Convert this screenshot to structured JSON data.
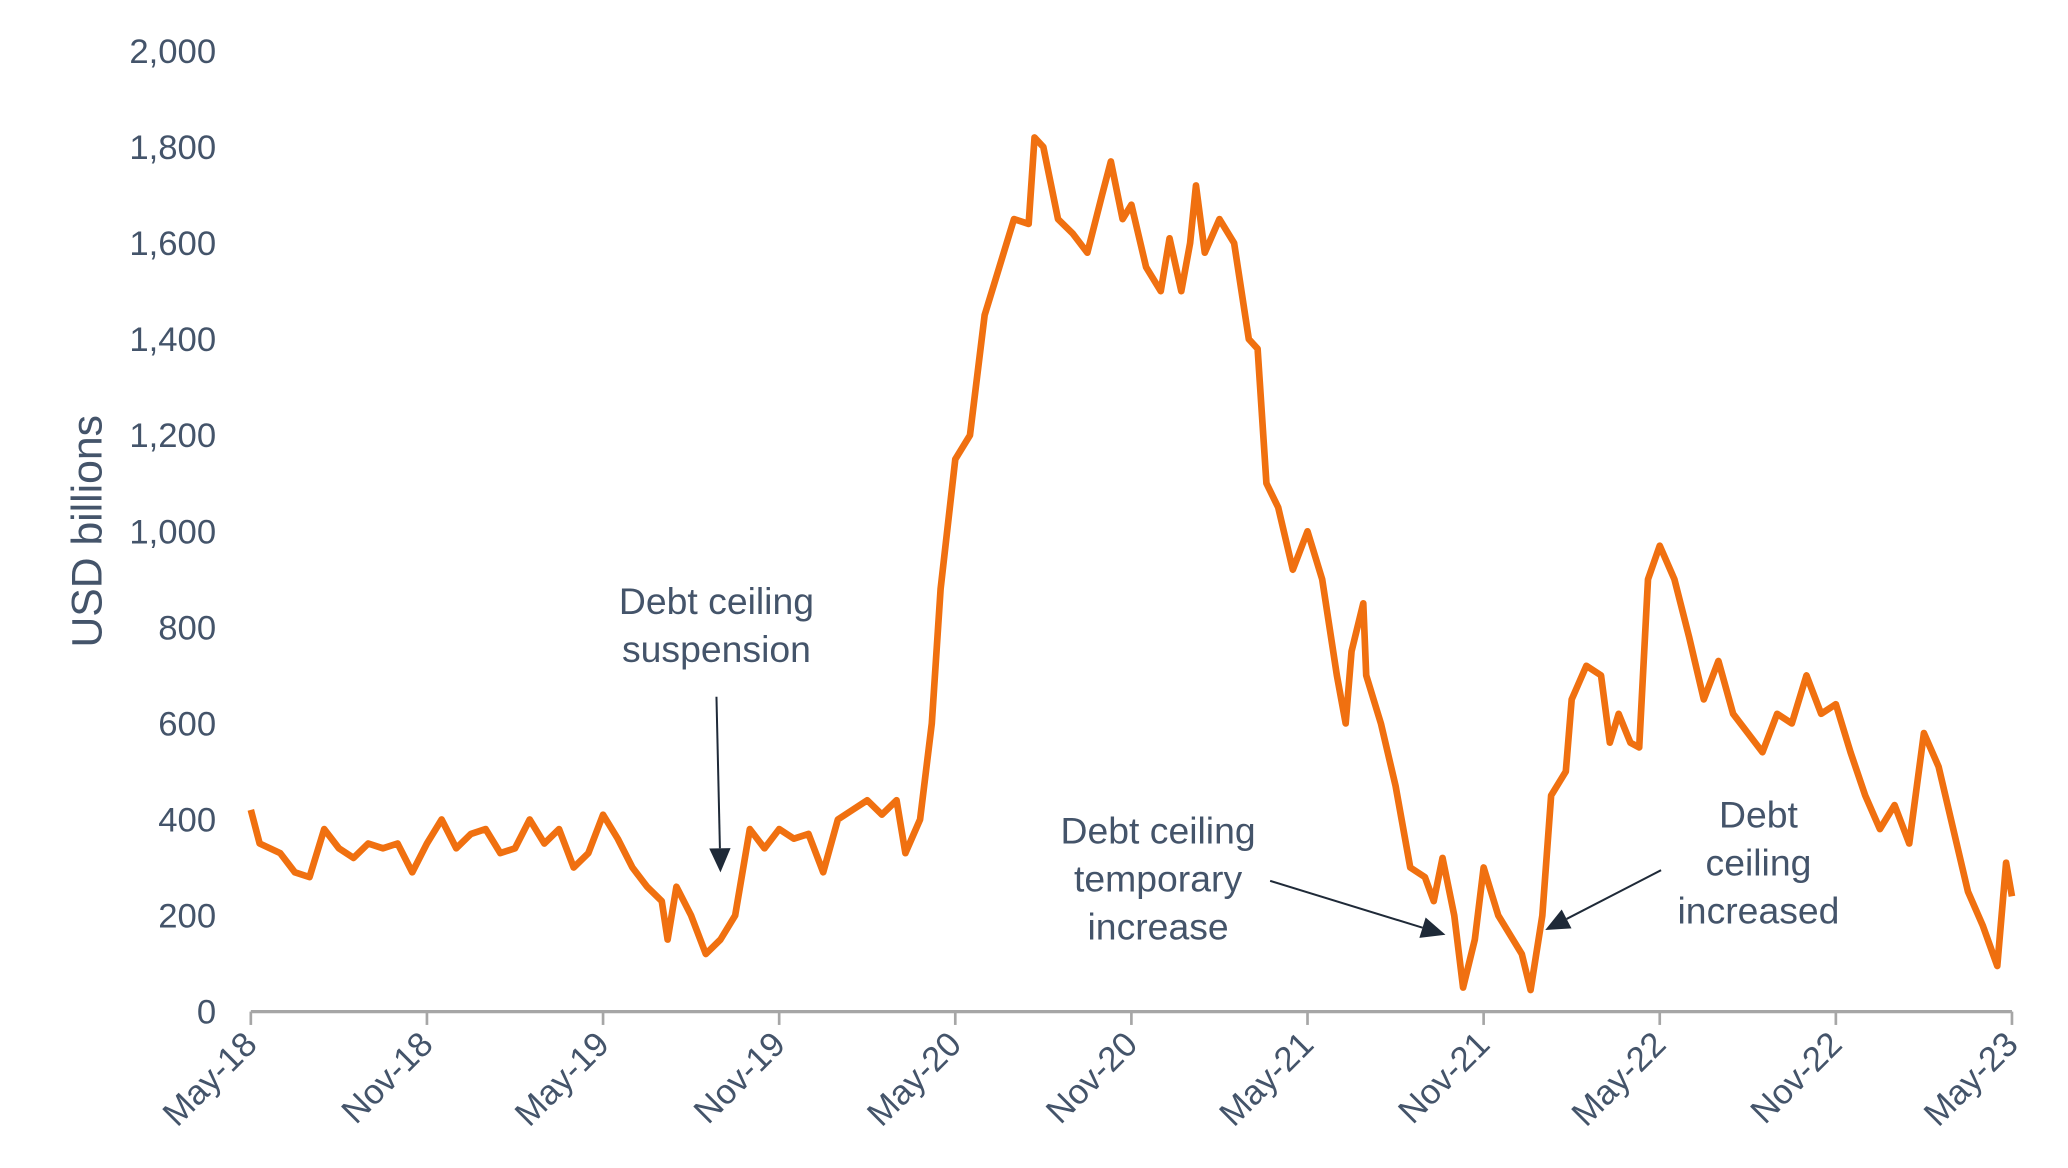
{
  "chart_data": {
    "type": "line",
    "title": "",
    "xlabel": "",
    "ylabel": "USD billions",
    "ylim": [
      0,
      2000
    ],
    "yticks": [
      "0",
      "200",
      "400",
      "600",
      "800",
      "1,000",
      "1,200",
      "1,400",
      "1,600",
      "1,800",
      "2,000"
    ],
    "ytick_values": [
      0,
      200,
      400,
      600,
      800,
      1000,
      1200,
      1400,
      1600,
      1800,
      2000
    ],
    "xticks": [
      "May-18",
      "Nov-18",
      "May-19",
      "Nov-19",
      "May-20",
      "Nov-20",
      "May-21",
      "Nov-21",
      "May-22",
      "Nov-22",
      "May-23"
    ],
    "x_unit": "months since May-18",
    "xlim": [
      0,
      60
    ],
    "grid": false,
    "series": [
      {
        "name": "USD billions",
        "color": "#f07010",
        "x": [
          0,
          0.3,
          1,
          1.5,
          2,
          2.5,
          3,
          3.5,
          4,
          4.5,
          5,
          5.5,
          6,
          6.5,
          7,
          7.5,
          8,
          8.5,
          9,
          9.5,
          10,
          10.5,
          11,
          11.5,
          12,
          12.5,
          13,
          13.5,
          14,
          14.2,
          14.5,
          15,
          15.5,
          16,
          16.5,
          17,
          17.5,
          18,
          18.5,
          19,
          19.5,
          20,
          20.5,
          21,
          21.5,
          22,
          22.3,
          22.8,
          23.2,
          23.5,
          24,
          24.5,
          25,
          25.5,
          26,
          26.5,
          26.7,
          27,
          27.5,
          28,
          28.5,
          29,
          29.3,
          29.7,
          30,
          30.5,
          31,
          31.3,
          31.7,
          32,
          32.2,
          32.5,
          33,
          33.5,
          34,
          34.3,
          34.6,
          35,
          35.5,
          36,
          36.5,
          37,
          37.3,
          37.5,
          37.9,
          38,
          38.5,
          39,
          39.5,
          40,
          40.3,
          40.6,
          41,
          41.3,
          41.7,
          42,
          42.5,
          43,
          43.3,
          43.6,
          44,
          44.3,
          44.8,
          45,
          45.5,
          46,
          46.3,
          46.6,
          47,
          47.3,
          47.6,
          48,
          48.5,
          49,
          49.5,
          50,
          50.5,
          51,
          51.5,
          52,
          52.5,
          53,
          53.5,
          54,
          54.5,
          55,
          55.5,
          56,
          56.5,
          57,
          57.5,
          58,
          58.5,
          59,
          59.5,
          59.8,
          60
        ],
        "values": [
          420,
          350,
          330,
          290,
          280,
          380,
          340,
          320,
          350,
          340,
          350,
          290,
          350,
          400,
          340,
          370,
          380,
          330,
          340,
          400,
          350,
          380,
          300,
          330,
          410,
          360,
          300,
          260,
          230,
          150,
          260,
          200,
          120,
          150,
          200,
          380,
          340,
          380,
          360,
          370,
          290,
          400,
          420,
          440,
          410,
          440,
          330,
          400,
          600,
          880,
          1150,
          1200,
          1450,
          1550,
          1650,
          1640,
          1820,
          1800,
          1650,
          1620,
          1580,
          1700,
          1770,
          1650,
          1680,
          1550,
          1500,
          1610,
          1500,
          1600,
          1720,
          1580,
          1650,
          1600,
          1400,
          1380,
          1100,
          1050,
          920,
          1000,
          900,
          700,
          600,
          750,
          850,
          700,
          600,
          470,
          300,
          280,
          230,
          320,
          200,
          50,
          150,
          300,
          200,
          150,
          120,
          45,
          200,
          450,
          500,
          650,
          720,
          700,
          560,
          620,
          560,
          550,
          900,
          970,
          900,
          780,
          650,
          730,
          620,
          580,
          540,
          620,
          600,
          700,
          620,
          640,
          540,
          450,
          380,
          430,
          350,
          580,
          510,
          380,
          250,
          180,
          95,
          310,
          240
        ]
      }
    ],
    "annotations": [
      {
        "lines": [
          "Debt ceiling",
          "suspension"
        ],
        "target_x": 16.0,
        "target_y": 290
      },
      {
        "lines": [
          "Debt ceiling",
          "temporary",
          "increase"
        ],
        "target_x": 40.7,
        "target_y": 160
      },
      {
        "lines": [
          "Debt",
          "ceiling",
          "increased"
        ],
        "target_x": 44.1,
        "target_y": 170
      }
    ]
  }
}
